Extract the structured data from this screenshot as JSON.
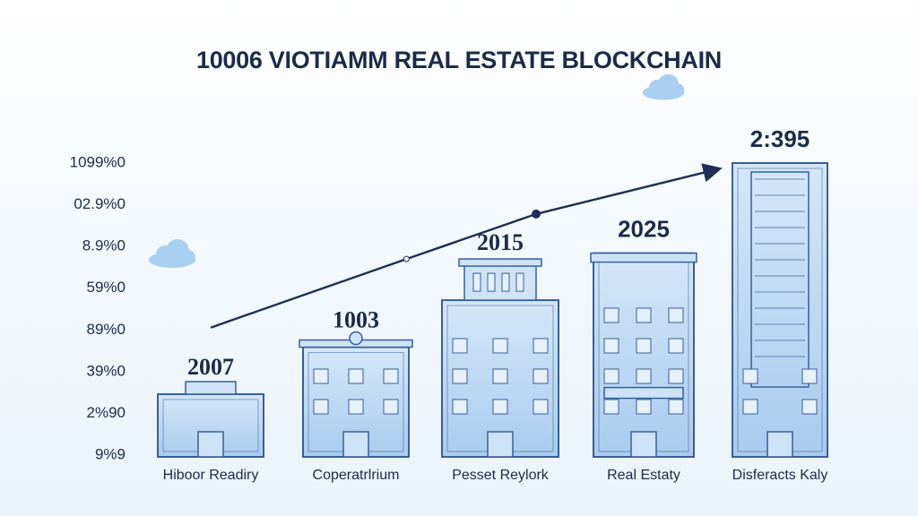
{
  "chart_data": {
    "type": "bar",
    "title": "10006 VIOTIAMM REAL ESTATE BLOCKCHAIN",
    "categories": [
      "Hiboor Readiry",
      "Coperatrlrium",
      "Pesset Reylork",
      "Real Estaty",
      "Disferacts Kaly"
    ],
    "bar_labels": [
      "2007",
      "1003",
      "2015",
      "2025",
      "2:395"
    ],
    "values": [
      1.6,
      2.8,
      4.0,
      5.2,
      7.5
    ],
    "y_tick_labels": [
      "9%9",
      "2%90",
      "39%0",
      "89%0",
      "59%0",
      "8.9%0",
      "02.9%0",
      "1099%0"
    ],
    "ylim": [
      0,
      7.5
    ],
    "trend_line": [
      {
        "x": 0,
        "y": 3.3
      },
      {
        "x": 1.35,
        "y": 5.05
      },
      {
        "x": 2.25,
        "y": 6.2
      },
      {
        "x": 3.55,
        "y": 7.35
      }
    ],
    "grid": false,
    "legend": "none",
    "colors": {
      "bar_fill": "#bdd8f1",
      "bar_stroke": "#36609a",
      "trend_line": "#1e2e55",
      "text": "#1b2b4a",
      "cloud": "#a9d0f0"
    }
  }
}
